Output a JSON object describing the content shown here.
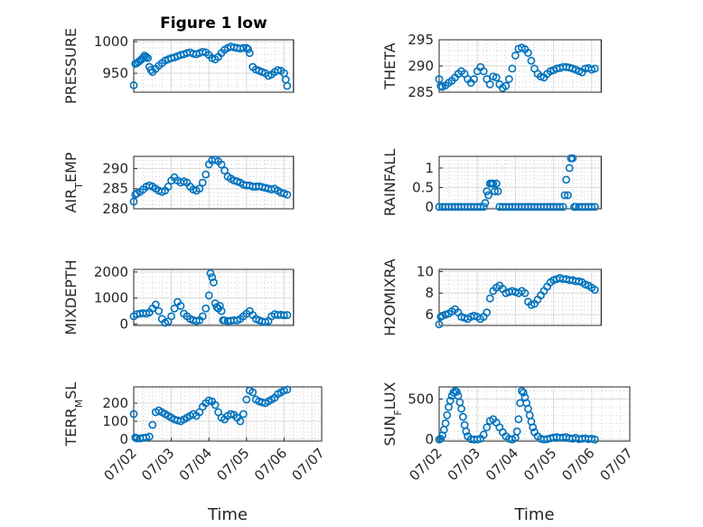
{
  "figure": {
    "title": "Figure 1 low",
    "marker_color": "#0072BD"
  },
  "chart_data": [
    {
      "type": "scatter",
      "title": "Figure 1 low",
      "ylabel": "PRESSURE",
      "yticks": [
        950,
        1000
      ],
      "ylim": [
        920,
        1003
      ],
      "xlim": [
        "07/02",
        "07/06 06:00"
      ],
      "xticks": [],
      "x": [
        "07/02 00:00",
        "07/02 01:00",
        "07/02 02:00",
        "07/02 03:00",
        "07/02 04:00",
        "07/02 05:00",
        "07/02 06:00",
        "07/02 07:00",
        "07/02 08:00",
        "07/02 09:00",
        "07/02 10:00",
        "07/02 11:00",
        "07/02 12:00",
        "07/02 14:00",
        "07/02 16:00",
        "07/02 18:00",
        "07/02 20:00",
        "07/02 22:00",
        "07/03 00:00",
        "07/03 02:00",
        "07/03 04:00",
        "07/03 06:00",
        "07/03 08:00",
        "07/03 10:00",
        "07/03 12:00",
        "07/03 14:00",
        "07/03 16:00",
        "07/03 18:00",
        "07/03 20:00",
        "07/03 22:00",
        "07/04 00:00",
        "07/04 02:00",
        "07/04 04:00",
        "07/04 06:00",
        "07/04 08:00",
        "07/04 10:00",
        "07/04 12:00",
        "07/04 14:00",
        "07/04 16:00",
        "07/04 18:00",
        "07/04 20:00",
        "07/04 22:00",
        "07/05 00:00",
        "07/05 01:00",
        "07/05 02:00",
        "07/05 04:00",
        "07/05 06:00",
        "07/05 08:00",
        "07/05 10:00",
        "07/05 12:00",
        "07/05 14:00",
        "07/05 16:00",
        "07/05 18:00",
        "07/05 20:00",
        "07/05 22:00",
        "07/06 00:00",
        "07/06 01:00",
        "07/06 02:00"
      ],
      "y": [
        931,
        965,
        966,
        968,
        970,
        972,
        975,
        978,
        976,
        974,
        960,
        955,
        952,
        957,
        962,
        966,
        970,
        972,
        974,
        975,
        977,
        979,
        980,
        982,
        983,
        981,
        980,
        982,
        984,
        983,
        979,
        974,
        972,
        976,
        982,
        987,
        990,
        992,
        991,
        990,
        989,
        990,
        990,
        988,
        982,
        960,
        956,
        954,
        952,
        950,
        946,
        948,
        952,
        955,
        954,
        950,
        940,
        930
      ]
    },
    {
      "type": "scatter",
      "ylabel": "THETA",
      "yticks": [
        285,
        290,
        295
      ],
      "ylim": [
        285,
        295
      ],
      "xlim": [
        "07/02",
        "07/06 06:00"
      ],
      "xticks": [],
      "x": [
        "07/02 00:00",
        "07/02 01:00",
        "07/02 02:00",
        "07/02 04:00",
        "07/02 06:00",
        "07/02 08:00",
        "07/02 10:00",
        "07/02 12:00",
        "07/02 14:00",
        "07/02 16:00",
        "07/02 18:00",
        "07/02 20:00",
        "07/02 22:00",
        "07/03 00:00",
        "07/03 02:00",
        "07/03 04:00",
        "07/03 06:00",
        "07/03 08:00",
        "07/03 10:00",
        "07/03 12:00",
        "07/03 14:00",
        "07/03 16:00",
        "07/03 18:00",
        "07/03 20:00",
        "07/03 22:00",
        "07/04 00:00",
        "07/04 02:00",
        "07/04 04:00",
        "07/04 06:00",
        "07/04 08:00",
        "07/04 10:00",
        "07/04 12:00",
        "07/04 14:00",
        "07/04 16:00",
        "07/04 18:00",
        "07/04 20:00",
        "07/04 22:00",
        "07/05 00:00",
        "07/05 02:00",
        "07/05 04:00",
        "07/05 06:00",
        "07/05 08:00",
        "07/05 10:00",
        "07/05 12:00",
        "07/05 14:00",
        "07/05 16:00",
        "07/05 18:00",
        "07/05 20:00",
        "07/05 22:00",
        "07/06 00:00",
        "07/06 02:00"
      ],
      "y": [
        287.5,
        286.2,
        286.0,
        286.3,
        286.8,
        287.2,
        287.8,
        288.5,
        289.0,
        288.5,
        287.5,
        286.8,
        287.5,
        289.0,
        289.8,
        289.0,
        287.5,
        286.5,
        288.0,
        287.8,
        286.5,
        285.8,
        286.2,
        287.5,
        289.5,
        292.0,
        293.3,
        293.5,
        293.2,
        292.5,
        291.0,
        289.5,
        288.5,
        288.0,
        287.8,
        288.5,
        289.0,
        289.2,
        289.5,
        289.6,
        289.8,
        289.8,
        289.7,
        289.5,
        289.3,
        289.0,
        288.8,
        289.5,
        289.6,
        289.3,
        289.5
      ]
    },
    {
      "type": "scatter",
      "ylabel": "AIR_TEMP",
      "yticks": [
        280,
        285,
        290
      ],
      "ylim": [
        280,
        293
      ],
      "xlim": [
        "07/02",
        "07/06 06:00"
      ],
      "xticks": [],
      "x": [
        "07/02 00:00",
        "07/02 01:00",
        "07/02 02:00",
        "07/02 04:00",
        "07/02 06:00",
        "07/02 08:00",
        "07/02 10:00",
        "07/02 12:00",
        "07/02 14:00",
        "07/02 16:00",
        "07/02 18:00",
        "07/02 20:00",
        "07/02 22:00",
        "07/03 00:00",
        "07/03 02:00",
        "07/03 04:00",
        "07/03 06:00",
        "07/03 08:00",
        "07/03 10:00",
        "07/03 12:00",
        "07/03 14:00",
        "07/03 16:00",
        "07/03 18:00",
        "07/03 20:00",
        "07/03 22:00",
        "07/04 00:00",
        "07/04 02:00",
        "07/04 04:00",
        "07/04 06:00",
        "07/04 08:00",
        "07/04 10:00",
        "07/04 12:00",
        "07/04 14:00",
        "07/04 16:00",
        "07/04 18:00",
        "07/04 20:00",
        "07/04 22:00",
        "07/05 00:00",
        "07/05 02:00",
        "07/05 04:00",
        "07/05 06:00",
        "07/05 08:00",
        "07/05 10:00",
        "07/05 12:00",
        "07/05 14:00",
        "07/05 16:00",
        "07/05 18:00",
        "07/05 20:00",
        "07/05 22:00",
        "07/06 00:00",
        "07/06 02:00"
      ],
      "y": [
        281.8,
        283.5,
        283.8,
        284.2,
        284.8,
        285.5,
        285.8,
        285.5,
        285.0,
        284.5,
        284.2,
        284.5,
        285.5,
        287.0,
        287.8,
        287.0,
        286.5,
        286.8,
        286.5,
        285.5,
        284.8,
        284.5,
        285.0,
        286.5,
        288.5,
        291.0,
        292.0,
        292.2,
        291.8,
        291.0,
        289.5,
        288.0,
        287.5,
        287.0,
        286.8,
        286.5,
        286.0,
        285.8,
        285.8,
        285.5,
        285.5,
        285.6,
        285.4,
        285.2,
        285.0,
        284.8,
        285.0,
        284.5,
        284.0,
        283.8,
        283.5
      ]
    },
    {
      "type": "scatter",
      "ylabel": "RAINFALL",
      "yticks": [
        0,
        0.5,
        1
      ],
      "ylim": [
        -0.05,
        1.3
      ],
      "xlim": [
        "07/02",
        "07/06 06:00"
      ],
      "xticks": [],
      "x": [
        "07/02 00:00",
        "07/02 02:00",
        "07/02 04:00",
        "07/02 06:00",
        "07/02 08:00",
        "07/02 10:00",
        "07/02 12:00",
        "07/02 14:00",
        "07/02 16:00",
        "07/02 18:00",
        "07/02 20:00",
        "07/02 22:00",
        "07/03 00:00",
        "07/03 02:00",
        "07/03 04:00",
        "07/03 05:00",
        "07/03 06:00",
        "07/03 07:00",
        "07/03 08:00",
        "07/03 09:00",
        "07/03 10:00",
        "07/03 11:00",
        "07/03 12:00",
        "07/03 13:00",
        "07/03 14:00",
        "07/03 16:00",
        "07/03 18:00",
        "07/03 20:00",
        "07/03 22:00",
        "07/04 00:00",
        "07/04 02:00",
        "07/04 04:00",
        "07/04 06:00",
        "07/04 08:00",
        "07/04 10:00",
        "07/04 12:00",
        "07/04 14:00",
        "07/04 16:00",
        "07/04 18:00",
        "07/04 20:00",
        "07/04 22:00",
        "07/05 00:00",
        "07/05 02:00",
        "07/05 04:00",
        "07/05 06:00",
        "07/05 07:00",
        "07/05 08:00",
        "07/05 09:00",
        "07/05 10:00",
        "07/05 11:00",
        "07/05 12:00",
        "07/05 13:00",
        "07/05 14:00",
        "07/05 16:00",
        "07/05 18:00",
        "07/05 20:00",
        "07/05 22:00",
        "07/06 00:00",
        "07/06 02:00"
      ],
      "y": [
        0,
        0,
        0,
        0,
        0,
        0,
        0,
        0,
        0,
        0,
        0,
        0,
        0,
        0,
        0,
        0.1,
        0.4,
        0.3,
        0.6,
        0.6,
        0.6,
        0.4,
        0.6,
        0.4,
        0,
        0,
        0,
        0,
        0,
        0,
        0,
        0,
        0,
        0,
        0,
        0,
        0,
        0,
        0,
        0,
        0,
        0,
        0,
        0,
        0,
        0.3,
        0.7,
        0.3,
        1.0,
        1.25,
        1.25,
        0,
        0,
        0,
        0,
        0,
        0,
        0,
        0
      ]
    },
    {
      "type": "scatter",
      "ylabel": "MIXDEPTH",
      "yticks": [
        0,
        1000,
        2000
      ],
      "ylim": [
        -50,
        2100
      ],
      "xlim": [
        "07/02",
        "07/06 06:00"
      ],
      "xticks": [],
      "x": [
        "07/02 00:00",
        "07/02 02:00",
        "07/02 04:00",
        "07/02 06:00",
        "07/02 08:00",
        "07/02 10:00",
        "07/02 12:00",
        "07/02 14:00",
        "07/02 16:00",
        "07/02 18:00",
        "07/02 20:00",
        "07/02 22:00",
        "07/03 00:00",
        "07/03 02:00",
        "07/03 04:00",
        "07/03 06:00",
        "07/03 08:00",
        "07/03 10:00",
        "07/03 12:00",
        "07/03 14:00",
        "07/03 16:00",
        "07/03 18:00",
        "07/03 20:00",
        "07/03 22:00",
        "07/04 00:00",
        "07/04 01:00",
        "07/04 02:00",
        "07/04 03:00",
        "07/04 04:00",
        "07/04 05:00",
        "07/04 06:00",
        "07/04 07:00",
        "07/04 08:00",
        "07/04 09:00",
        "07/04 10:00",
        "07/04 12:00",
        "07/04 14:00",
        "07/04 16:00",
        "07/04 18:00",
        "07/04 20:00",
        "07/04 22:00",
        "07/05 00:00",
        "07/05 02:00",
        "07/05 04:00",
        "07/05 06:00",
        "07/05 08:00",
        "07/05 10:00",
        "07/05 12:00",
        "07/05 14:00",
        "07/05 16:00",
        "07/05 18:00",
        "07/05 20:00",
        "07/05 22:00",
        "07/06 00:00",
        "07/06 02:00"
      ],
      "y": [
        300,
        380,
        400,
        420,
        400,
        450,
        600,
        750,
        500,
        200,
        50,
        100,
        300,
        600,
        850,
        700,
        400,
        300,
        200,
        150,
        120,
        150,
        300,
        600,
        1100,
        1950,
        1800,
        1600,
        800,
        650,
        600,
        700,
        500,
        150,
        140,
        120,
        130,
        150,
        140,
        200,
        300,
        400,
        500,
        350,
        200,
        150,
        100,
        80,
        120,
        300,
        380,
        350,
        360,
        340,
        350
      ]
    },
    {
      "type": "scatter",
      "ylabel": "H2OMIXRA",
      "yticks": [
        6,
        8,
        10
      ],
      "ylim": [
        5,
        10.2
      ],
      "xlim": [
        "07/02",
        "07/06 06:00"
      ],
      "xticks": [],
      "x": [
        "07/02 00:00",
        "07/02 01:00",
        "07/02 02:00",
        "07/02 04:00",
        "07/02 06:00",
        "07/02 08:00",
        "07/02 10:00",
        "07/02 12:00",
        "07/02 14:00",
        "07/02 16:00",
        "07/02 18:00",
        "07/02 20:00",
        "07/02 22:00",
        "07/03 00:00",
        "07/03 02:00",
        "07/03 04:00",
        "07/03 06:00",
        "07/03 08:00",
        "07/03 10:00",
        "07/03 12:00",
        "07/03 14:00",
        "07/03 16:00",
        "07/03 18:00",
        "07/03 20:00",
        "07/03 22:00",
        "07/04 00:00",
        "07/04 02:00",
        "07/04 04:00",
        "07/04 06:00",
        "07/04 08:00",
        "07/04 10:00",
        "07/04 12:00",
        "07/04 14:00",
        "07/04 16:00",
        "07/04 18:00",
        "07/04 20:00",
        "07/04 22:00",
        "07/05 00:00",
        "07/05 02:00",
        "07/05 04:00",
        "07/05 06:00",
        "07/05 08:00",
        "07/05 10:00",
        "07/05 12:00",
        "07/05 14:00",
        "07/05 16:00",
        "07/05 18:00",
        "07/05 20:00",
        "07/05 22:00",
        "07/06 00:00",
        "07/06 02:00"
      ],
      "y": [
        5.1,
        5.8,
        5.9,
        6.0,
        6.1,
        6.3,
        6.5,
        6.2,
        5.8,
        5.7,
        5.6,
        5.8,
        5.9,
        5.8,
        5.6,
        5.8,
        6.2,
        7.5,
        8.2,
        8.5,
        8.7,
        8.4,
        8.0,
        8.1,
        8.2,
        8.1,
        8.0,
        8.2,
        8.0,
        7.2,
        6.9,
        7.0,
        7.4,
        7.8,
        8.2,
        8.6,
        9.0,
        9.2,
        9.3,
        9.4,
        9.3,
        9.3,
        9.2,
        9.2,
        9.1,
        9.1,
        9.0,
        8.8,
        8.7,
        8.5,
        8.3
      ]
    },
    {
      "type": "scatter",
      "ylabel": "TERR_MSL",
      "yticks": [
        0,
        100,
        200
      ],
      "ylim": [
        -10,
        290
      ],
      "xlim": [
        "07/02",
        "07/07"
      ],
      "xticks": [
        "07/02",
        "07/03",
        "07/04",
        "07/05",
        "07/06",
        "07/07"
      ],
      "xlabel": "Time",
      "x": [
        "07/02 00:00",
        "07/02 01:00",
        "07/02 02:00",
        "07/02 04:00",
        "07/02 06:00",
        "07/02 08:00",
        "07/02 10:00",
        "07/02 12:00",
        "07/02 14:00",
        "07/02 16:00",
        "07/02 18:00",
        "07/02 20:00",
        "07/02 22:00",
        "07/03 00:00",
        "07/03 02:00",
        "07/03 04:00",
        "07/03 06:00",
        "07/03 08:00",
        "07/03 10:00",
        "07/03 12:00",
        "07/03 14:00",
        "07/03 16:00",
        "07/03 18:00",
        "07/03 20:00",
        "07/03 22:00",
        "07/04 00:00",
        "07/04 02:00",
        "07/04 04:00",
        "07/04 06:00",
        "07/04 08:00",
        "07/04 10:00",
        "07/04 12:00",
        "07/04 14:00",
        "07/04 16:00",
        "07/04 18:00",
        "07/04 20:00",
        "07/04 22:00",
        "07/05 00:00",
        "07/05 02:00",
        "07/05 04:00",
        "07/05 06:00",
        "07/05 08:00",
        "07/05 10:00",
        "07/05 12:00",
        "07/05 14:00",
        "07/05 16:00",
        "07/05 18:00",
        "07/05 20:00",
        "07/05 22:00",
        "07/06 00:00",
        "07/06 02:00"
      ],
      "y": [
        140,
        10,
        5,
        5,
        8,
        10,
        15,
        80,
        150,
        160,
        150,
        140,
        130,
        120,
        110,
        105,
        100,
        110,
        120,
        130,
        140,
        130,
        150,
        180,
        200,
        215,
        210,
        190,
        150,
        120,
        110,
        130,
        140,
        135,
        120,
        100,
        140,
        220,
        270,
        260,
        220,
        210,
        205,
        200,
        210,
        220,
        230,
        250,
        260,
        270,
        275
      ]
    },
    {
      "type": "scatter",
      "ylabel": "SUN_FLUX",
      "yticks": [
        0,
        500
      ],
      "ylim": [
        -20,
        650
      ],
      "xlim": [
        "07/02",
        "07/07"
      ],
      "xticks": [
        "07/02",
        "07/03",
        "07/04",
        "07/05",
        "07/06",
        "07/07"
      ],
      "xlabel": "Time",
      "x": [
        "07/02 00:00",
        "07/02 01:00",
        "07/02 02:00",
        "07/02 03:00",
        "07/02 04:00",
        "07/02 05:00",
        "07/02 06:00",
        "07/02 07:00",
        "07/02 08:00",
        "07/02 09:00",
        "07/02 10:00",
        "07/02 11:00",
        "07/02 12:00",
        "07/02 13:00",
        "07/02 14:00",
        "07/02 15:00",
        "07/02 16:00",
        "07/02 17:00",
        "07/02 18:00",
        "07/02 20:00",
        "07/02 22:00",
        "07/03 00:00",
        "07/03 02:00",
        "07/03 04:00",
        "07/03 06:00",
        "07/03 08:00",
        "07/03 10:00",
        "07/03 12:00",
        "07/03 14:00",
        "07/03 16:00",
        "07/03 18:00",
        "07/03 20:00",
        "07/03 22:00",
        "07/04 00:00",
        "07/04 01:00",
        "07/04 02:00",
        "07/04 03:00",
        "07/04 04:00",
        "07/04 05:00",
        "07/04 06:00",
        "07/04 07:00",
        "07/04 08:00",
        "07/04 09:00",
        "07/04 10:00",
        "07/04 11:00",
        "07/04 12:00",
        "07/04 14:00",
        "07/04 16:00",
        "07/04 18:00",
        "07/04 20:00",
        "07/04 22:00",
        "07/05 00:00",
        "07/05 02:00",
        "07/05 04:00",
        "07/05 06:00",
        "07/05 08:00",
        "07/05 10:00",
        "07/05 12:00",
        "07/05 14:00",
        "07/05 16:00",
        "07/05 18:00",
        "07/05 20:00",
        "07/05 22:00",
        "07/06 00:00",
        "07/06 02:00"
      ],
      "y": [
        0,
        10,
        50,
        120,
        200,
        300,
        400,
        480,
        540,
        580,
        600,
        590,
        540,
        460,
        380,
        280,
        180,
        100,
        40,
        5,
        0,
        0,
        10,
        60,
        150,
        230,
        250,
        210,
        150,
        90,
        40,
        10,
        0,
        20,
        100,
        250,
        450,
        600,
        580,
        520,
        450,
        380,
        300,
        220,
        150,
        90,
        40,
        10,
        0,
        5,
        15,
        25,
        30,
        20,
        25,
        30,
        15,
        10,
        20,
        5,
        10,
        15,
        5,
        10,
        0
      ]
    }
  ]
}
